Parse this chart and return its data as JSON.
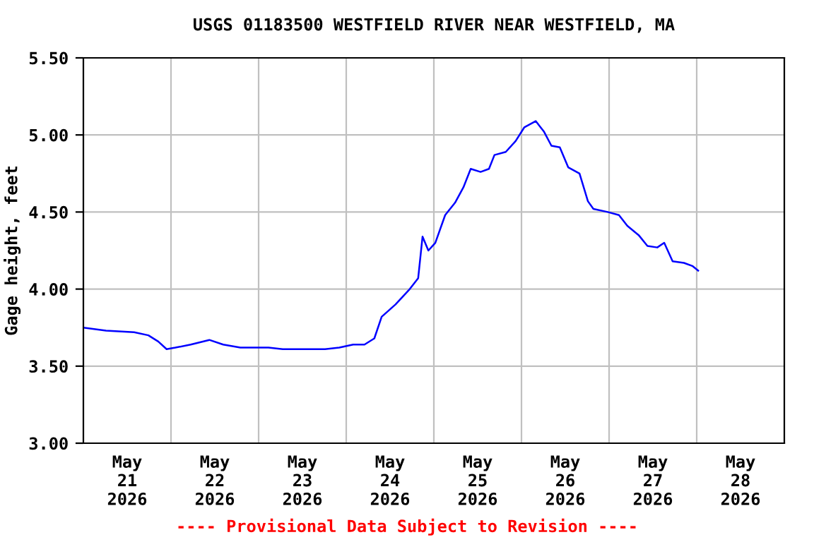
{
  "chart_data": {
    "type": "line",
    "title": "USGS 01183500 WESTFIELD RIVER NEAR WESTFIELD, MA",
    "ylabel": "Gage height, feet",
    "x": [
      "2026-05-21T00:00",
      "2026-05-21T06:12",
      "2026-05-21T13:54",
      "2026-05-21T17:48",
      "2026-05-21T20:30",
      "2026-05-21T22:48",
      "2026-05-22T01:12",
      "2026-05-22T05:24",
      "2026-05-22T10:30",
      "2026-05-22T14:18",
      "2026-05-22T19:00",
      "2026-05-23T02:42",
      "2026-05-23T06:36",
      "2026-05-23T12:24",
      "2026-05-23T18:12",
      "2026-05-23T22:06",
      "2026-05-24T01:54",
      "2026-05-24T05:00",
      "2026-05-24T07:42",
      "2026-05-24T09:42",
      "2026-05-24T13:30",
      "2026-05-24T17:24",
      "2026-05-24T19:42",
      "2026-05-24T20:54",
      "2026-05-24T22:30",
      "2026-05-25T00:24",
      "2026-05-25T03:06",
      "2026-05-25T05:48",
      "2026-05-25T08:06",
      "2026-05-25T10:06",
      "2026-05-25T12:48",
      "2026-05-25T15:06",
      "2026-05-25T16:36",
      "2026-05-25T19:42",
      "2026-05-25T22:24",
      "2026-05-26T00:48",
      "2026-05-26T03:54",
      "2026-05-26T06:12",
      "2026-05-26T08:12",
      "2026-05-26T10:30",
      "2026-05-26T12:48",
      "2026-05-26T15:54",
      "2026-05-26T18:12",
      "2026-05-26T19:42",
      "2026-05-26T23:36",
      "2026-05-27T02:42",
      "2026-05-27T05:00",
      "2026-05-27T08:06",
      "2026-05-27T10:30",
      "2026-05-27T13:12",
      "2026-05-27T15:06",
      "2026-05-27T17:24",
      "2026-05-27T20:30",
      "2026-05-27T22:48",
      "2026-05-28T00:24"
    ],
    "series": [
      {
        "color": "#0000ff",
        "values": [
          3.75,
          3.73,
          3.72,
          3.7,
          3.66,
          3.61,
          3.62,
          3.64,
          3.67,
          3.64,
          3.62,
          3.62,
          3.61,
          3.61,
          3.61,
          3.62,
          3.64,
          3.64,
          3.68,
          3.82,
          3.9,
          4.0,
          4.07,
          4.34,
          4.25,
          4.3,
          4.48,
          4.56,
          4.66,
          4.78,
          4.76,
          4.78,
          4.87,
          4.89,
          4.96,
          5.05,
          5.09,
          5.02,
          4.93,
          4.92,
          4.79,
          4.75,
          4.57,
          4.52,
          4.5,
          4.48,
          4.41,
          4.35,
          4.28,
          4.27,
          4.3,
          4.18,
          4.17,
          4.15,
          4.12
        ]
      }
    ],
    "xlim": [
      "2026-05-21T00:00",
      "2026-05-29T00:00"
    ],
    "xticks": [
      {
        "value": "2026-05-21T12:00",
        "label": "May\n21\n2026"
      },
      {
        "value": "2026-05-22T00:00",
        "label": null
      },
      {
        "value": "2026-05-22T12:00",
        "label": "May\n22\n2026"
      },
      {
        "value": "2026-05-23T00:00",
        "label": null
      },
      {
        "value": "2026-05-23T12:00",
        "label": "May\n23\n2026"
      },
      {
        "value": "2026-05-24T00:00",
        "label": null
      },
      {
        "value": "2026-05-24T12:00",
        "label": "May\n24\n2026"
      },
      {
        "value": "2026-05-25T00:00",
        "label": null
      },
      {
        "value": "2026-05-25T12:00",
        "label": "May\n25\n2026"
      },
      {
        "value": "2026-05-26T00:00",
        "label": null
      },
      {
        "value": "2026-05-26T12:00",
        "label": "May\n26\n2026"
      },
      {
        "value": "2026-05-27T00:00",
        "label": null
      },
      {
        "value": "2026-05-27T12:00",
        "label": "May\n27\n2026"
      },
      {
        "value": "2026-05-28T00:00",
        "label": null
      },
      {
        "value": "2026-05-28T12:00",
        "label": "May\n28\n2026"
      }
    ],
    "ylim": [
      3.0,
      5.5
    ],
    "yticks": [
      {
        "value": 3.0,
        "label": "3.00"
      },
      {
        "value": 3.5,
        "label": "3.50"
      },
      {
        "value": 4.0,
        "label": "4.00"
      },
      {
        "value": 4.5,
        "label": "4.50"
      },
      {
        "value": 5.0,
        "label": "5.00"
      },
      {
        "value": 5.5,
        "label": "5.50"
      }
    ],
    "grid": true,
    "marker": "none",
    "line_style": "solid",
    "legend": false,
    "annotations": [
      "---- Provisional Data Subject to Revision ----"
    ]
  }
}
